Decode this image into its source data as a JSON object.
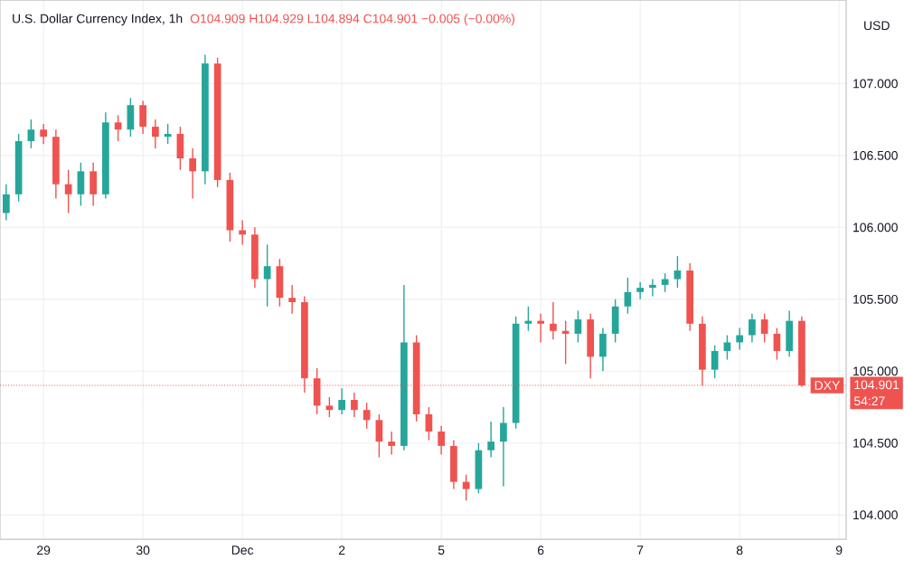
{
  "chart_data": {
    "type": "candlestick",
    "title": "U.S. Dollar Currency Index, 1h",
    "subtitle": "O104.909 H104.929 L104.894 C104.901 −0.005 (−0.00%)",
    "ylabel": "USD",
    "categories": [
      null,
      null,
      null,
      "29",
      null,
      null,
      null,
      null,
      null,
      null,
      null,
      "30",
      null,
      null,
      null,
      null,
      null,
      null,
      null,
      "Dec",
      null,
      null,
      null,
      null,
      null,
      null,
      null,
      "2",
      null,
      null,
      null,
      null,
      null,
      null,
      null,
      "5",
      null,
      null,
      null,
      null,
      null,
      null,
      null,
      "6",
      null,
      null,
      null,
      null,
      null,
      null,
      null,
      "7",
      null,
      null,
      null,
      null,
      null,
      null,
      null,
      "8",
      null,
      null,
      null,
      null,
      null,
      null,
      null,
      "9"
    ],
    "ohlc": [
      [
        106.1,
        106.3,
        106.05,
        106.23
      ],
      [
        106.23,
        106.65,
        106.18,
        106.6
      ],
      [
        106.6,
        106.75,
        106.55,
        106.68
      ],
      [
        106.68,
        106.72,
        106.58,
        106.63
      ],
      [
        106.63,
        106.68,
        106.2,
        106.3
      ],
      [
        106.3,
        106.4,
        106.1,
        106.23
      ],
      [
        106.23,
        106.45,
        106.15,
        106.39
      ],
      [
        106.39,
        106.45,
        106.15,
        106.23
      ],
      [
        106.23,
        106.8,
        106.2,
        106.73
      ],
      [
        106.73,
        106.78,
        106.6,
        106.68
      ],
      [
        106.68,
        106.9,
        106.63,
        106.85
      ],
      [
        106.85,
        106.88,
        106.65,
        106.7
      ],
      [
        106.7,
        106.75,
        106.55,
        106.63
      ],
      [
        106.63,
        106.72,
        106.58,
        106.65
      ],
      [
        106.65,
        106.7,
        106.4,
        106.48
      ],
      [
        106.48,
        106.55,
        106.2,
        106.39
      ],
      [
        106.39,
        107.2,
        106.3,
        107.14
      ],
      [
        107.14,
        107.18,
        106.28,
        106.33
      ],
      [
        106.33,
        106.38,
        105.9,
        105.98
      ],
      [
        105.98,
        106.05,
        105.88,
        105.95
      ],
      [
        105.95,
        106.0,
        105.58,
        105.64
      ],
      [
        105.64,
        105.88,
        105.45,
        105.73
      ],
      [
        105.73,
        105.78,
        105.45,
        105.51
      ],
      [
        105.51,
        105.6,
        105.4,
        105.48
      ],
      [
        105.48,
        105.52,
        104.85,
        104.95
      ],
      [
        104.95,
        105.02,
        104.7,
        104.76
      ],
      [
        104.76,
        104.82,
        104.68,
        104.73
      ],
      [
        104.73,
        104.88,
        104.7,
        104.8
      ],
      [
        104.8,
        104.85,
        104.68,
        104.73
      ],
      [
        104.73,
        104.78,
        104.6,
        104.66
      ],
      [
        104.66,
        104.7,
        104.4,
        104.51
      ],
      [
        104.51,
        104.58,
        104.42,
        104.48
      ],
      [
        104.48,
        105.6,
        104.45,
        105.2
      ],
      [
        105.2,
        105.25,
        104.65,
        104.7
      ],
      [
        104.7,
        104.75,
        104.52,
        104.58
      ],
      [
        104.58,
        104.62,
        104.42,
        104.48
      ],
      [
        104.48,
        104.52,
        104.18,
        104.23
      ],
      [
        104.23,
        104.28,
        104.1,
        104.18
      ],
      [
        104.18,
        104.5,
        104.15,
        104.45
      ],
      [
        104.45,
        104.65,
        104.4,
        104.51
      ],
      [
        104.51,
        104.75,
        104.2,
        104.64
      ],
      [
        104.64,
        105.38,
        104.6,
        105.33
      ],
      [
        105.33,
        105.45,
        105.28,
        105.35
      ],
      [
        105.35,
        105.4,
        105.2,
        105.33
      ],
      [
        105.33,
        105.48,
        105.22,
        105.28
      ],
      [
        105.28,
        105.35,
        105.05,
        105.26
      ],
      [
        105.26,
        105.42,
        105.2,
        105.36
      ],
      [
        105.36,
        105.4,
        104.95,
        105.1
      ],
      [
        105.1,
        105.3,
        105.0,
        105.26
      ],
      [
        105.26,
        105.5,
        105.2,
        105.45
      ],
      [
        105.45,
        105.65,
        105.4,
        105.55
      ],
      [
        105.55,
        105.62,
        105.5,
        105.58
      ],
      [
        105.58,
        105.64,
        105.52,
        105.6
      ],
      [
        105.6,
        105.68,
        105.55,
        105.64
      ],
      [
        105.64,
        105.8,
        105.58,
        105.7
      ],
      [
        105.7,
        105.75,
        105.28,
        105.33
      ],
      [
        105.33,
        105.38,
        104.9,
        105.01
      ],
      [
        105.01,
        105.18,
        104.95,
        105.14
      ],
      [
        105.14,
        105.25,
        105.08,
        105.2
      ],
      [
        105.2,
        105.3,
        105.15,
        105.25
      ],
      [
        105.25,
        105.4,
        105.2,
        105.36
      ],
      [
        105.36,
        105.4,
        105.2,
        105.26
      ],
      [
        105.26,
        105.3,
        105.08,
        105.14
      ],
      [
        105.14,
        105.42,
        105.1,
        105.35
      ],
      [
        105.35,
        105.38,
        104.89,
        104.901
      ],
      null,
      null,
      null
    ],
    "ylim": [
      103.83,
      107.58
    ],
    "yticks": [
      {
        "value": 104,
        "label": "104.000"
      },
      {
        "value": 104.5,
        "label": "104.500"
      },
      {
        "value": 105,
        "label": "105.000"
      },
      {
        "value": 105.5,
        "label": "105.500"
      },
      {
        "value": 106,
        "label": "106.000"
      },
      {
        "value": 106.5,
        "label": "106.500"
      },
      {
        "value": 107,
        "label": "107.000"
      }
    ],
    "grid": true,
    "ref_lines": [
      {
        "axis": "y",
        "value": 104.901,
        "label": "DXY",
        "color": "#ef5350",
        "line_style": "dotted"
      }
    ],
    "annotations": [
      "104.901",
      "54:27"
    ]
  }
}
